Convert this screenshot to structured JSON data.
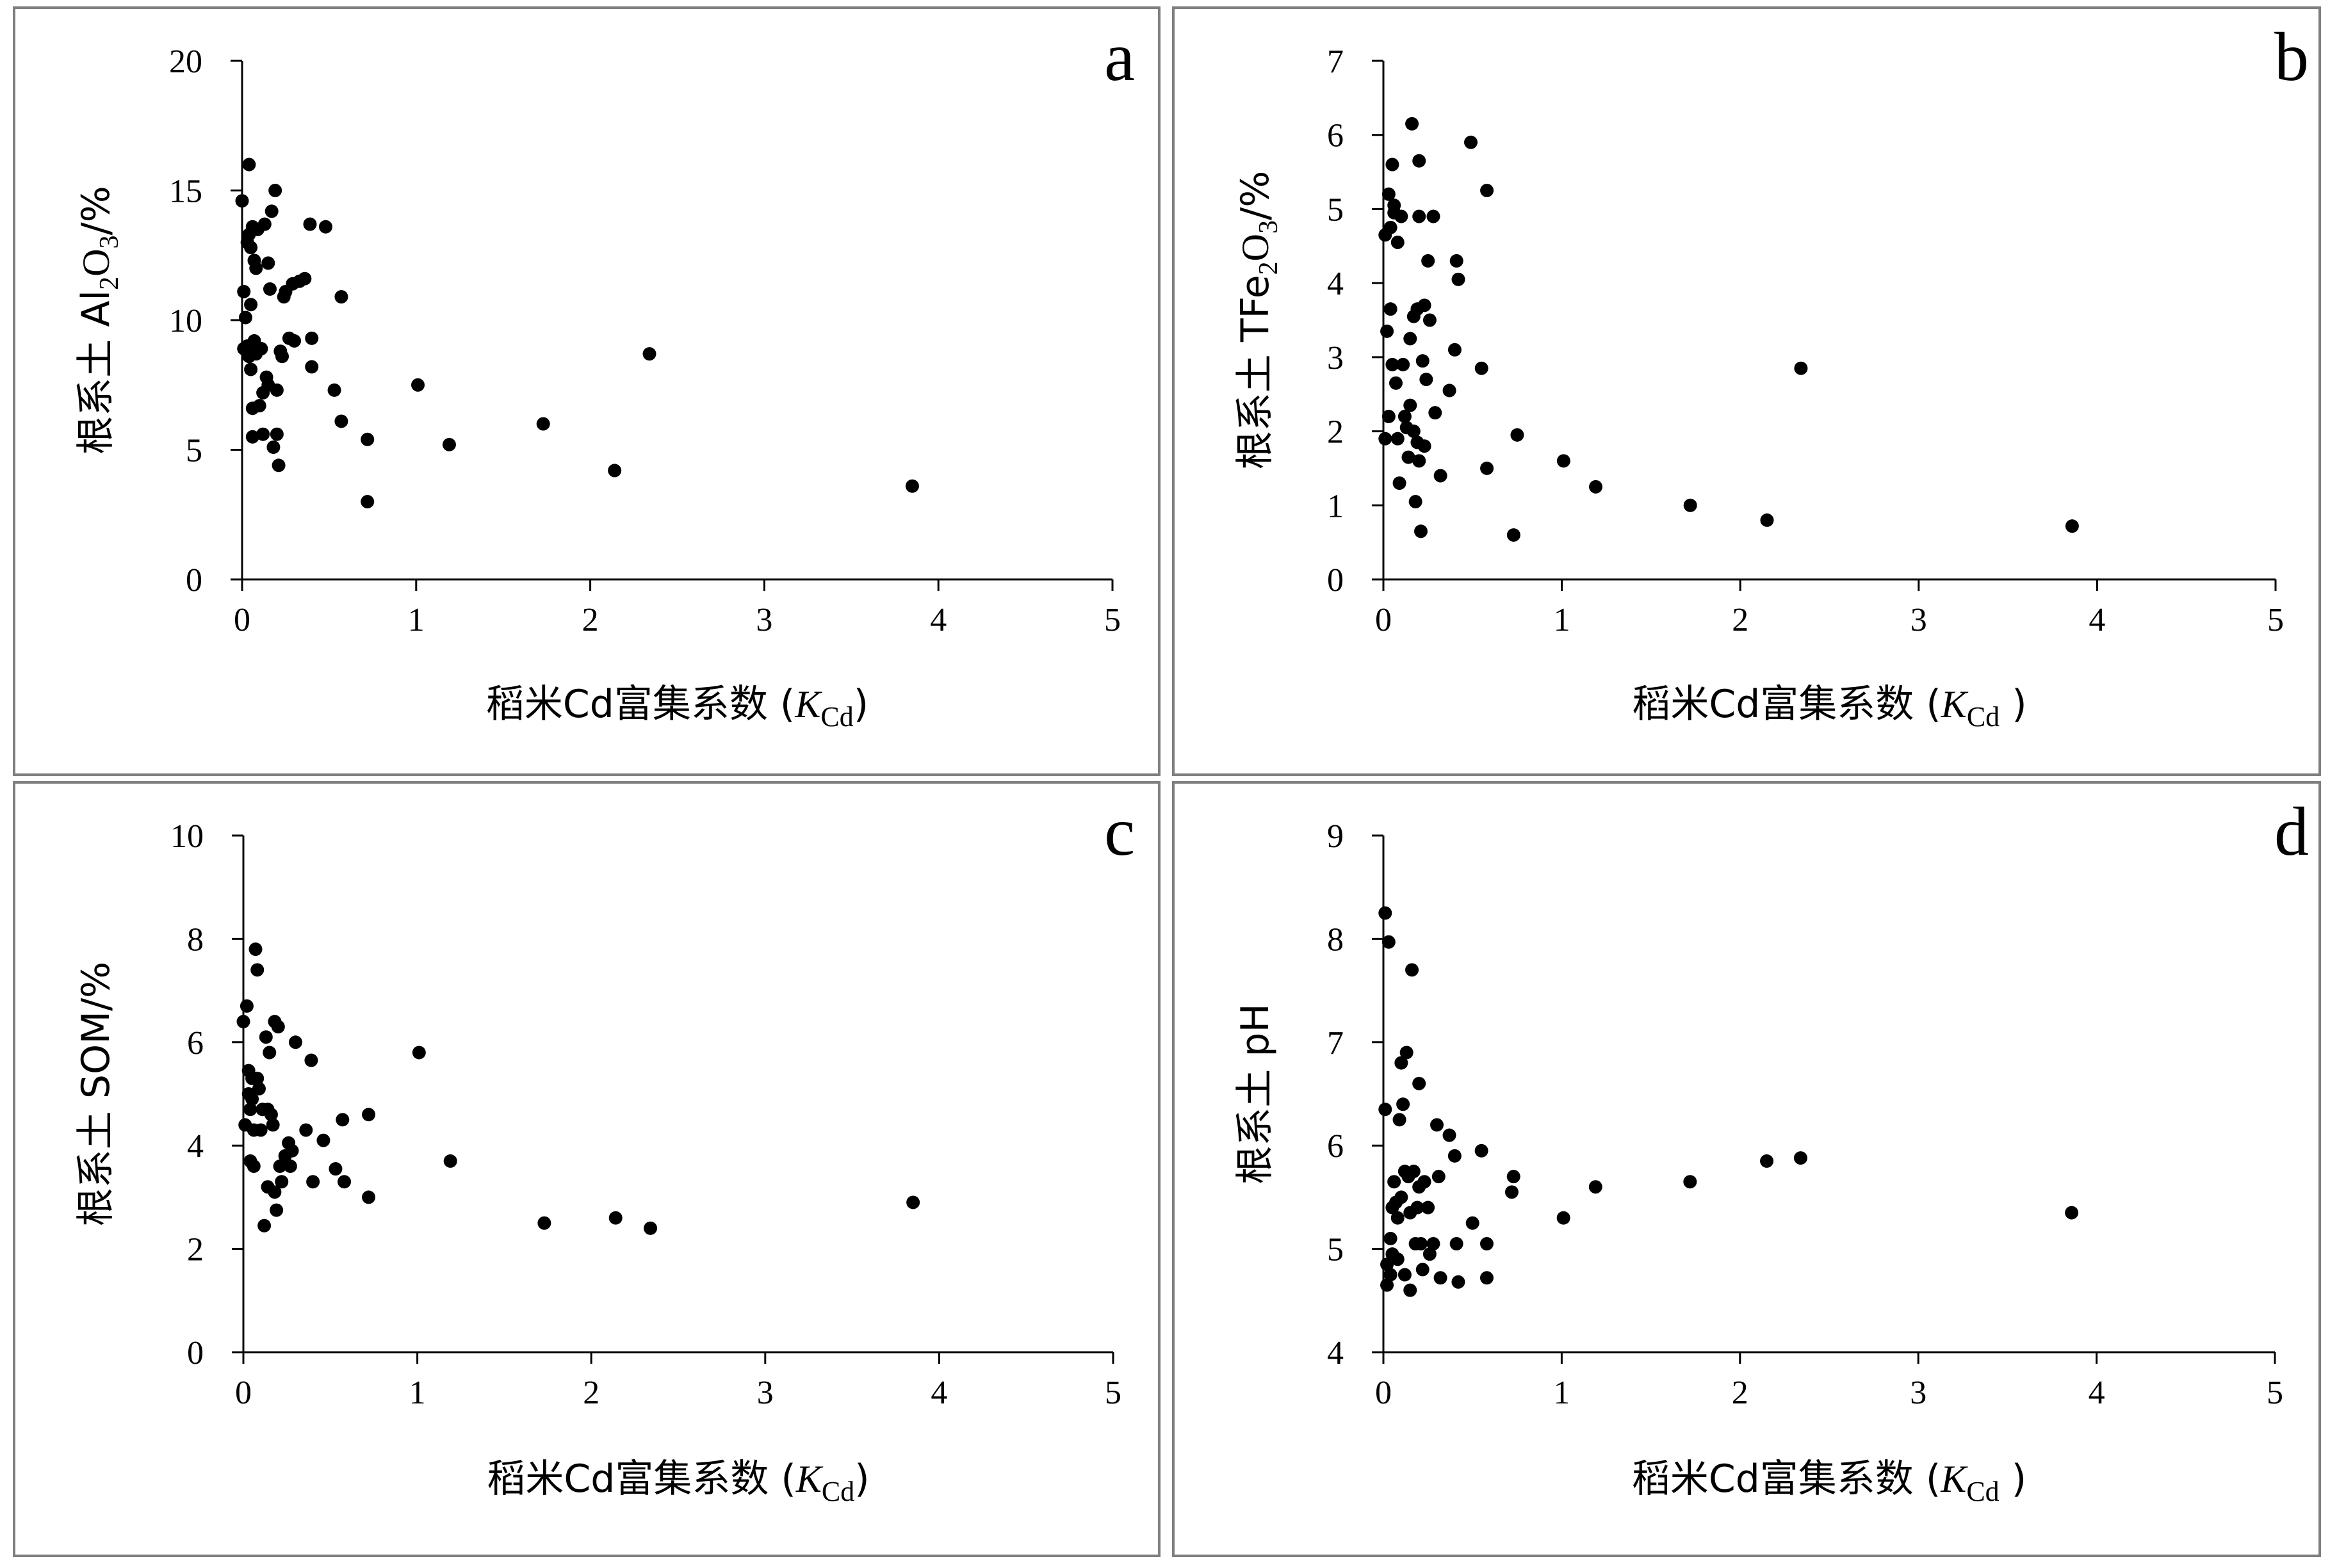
{
  "colors": {
    "point": "#000000",
    "axis": "#000000",
    "frame": "#7f7f7f"
  },
  "chart_data": [
    {
      "type": "scatter",
      "panel_label": "a",
      "xlabel": {
        "prefix": "稻米Cd富集系数 (",
        "italic": "K",
        "sub": "Cd",
        "suffix": ")"
      },
      "ylabel": {
        "prefix": "根系土 Al",
        "sub1": "2",
        "mid": "O",
        "sub2": "3",
        "suffix": "/%"
      },
      "xlim": [
        0,
        5
      ],
      "ylim": [
        0,
        20
      ],
      "xticks": [
        "0",
        "1",
        "2",
        "3",
        "4",
        "5"
      ],
      "yticks": [
        "0",
        "5",
        "10",
        "15",
        "20"
      ],
      "points": [
        [
          0.0,
          14.6
        ],
        [
          0.01,
          11.1
        ],
        [
          0.01,
          8.9
        ],
        [
          0.02,
          10.1
        ],
        [
          0.03,
          9.0
        ],
        [
          0.03,
          13.0
        ],
        [
          0.04,
          16.0
        ],
        [
          0.04,
          13.3
        ],
        [
          0.04,
          8.6
        ],
        [
          0.05,
          12.8
        ],
        [
          0.05,
          10.6
        ],
        [
          0.05,
          8.1
        ],
        [
          0.06,
          13.6
        ],
        [
          0.06,
          6.6
        ],
        [
          0.06,
          5.5
        ],
        [
          0.07,
          12.3
        ],
        [
          0.07,
          9.2
        ],
        [
          0.08,
          12.0
        ],
        [
          0.08,
          8.7
        ],
        [
          0.09,
          13.5
        ],
        [
          0.1,
          6.7
        ],
        [
          0.11,
          8.9
        ],
        [
          0.12,
          7.2
        ],
        [
          0.12,
          5.6
        ],
        [
          0.13,
          13.7
        ],
        [
          0.14,
          7.8
        ],
        [
          0.15,
          12.2
        ],
        [
          0.15,
          7.5
        ],
        [
          0.16,
          11.2
        ],
        [
          0.17,
          14.2
        ],
        [
          0.18,
          5.1
        ],
        [
          0.19,
          15.0
        ],
        [
          0.2,
          7.3
        ],
        [
          0.2,
          5.6
        ],
        [
          0.21,
          4.4
        ],
        [
          0.22,
          8.8
        ],
        [
          0.23,
          8.6
        ],
        [
          0.24,
          10.9
        ],
        [
          0.25,
          11.1
        ],
        [
          0.27,
          9.3
        ],
        [
          0.29,
          11.4
        ],
        [
          0.3,
          9.2
        ],
        [
          0.33,
          11.5
        ],
        [
          0.36,
          11.6
        ],
        [
          0.39,
          13.7
        ],
        [
          0.4,
          9.3
        ],
        [
          0.4,
          8.2
        ],
        [
          0.48,
          13.6
        ],
        [
          0.53,
          7.3
        ],
        [
          0.57,
          10.9
        ],
        [
          0.57,
          6.1
        ],
        [
          0.72,
          5.4
        ],
        [
          0.72,
          3.0
        ],
        [
          1.01,
          7.5
        ],
        [
          1.19,
          5.2
        ],
        [
          1.73,
          6.0
        ],
        [
          2.14,
          4.2
        ],
        [
          2.34,
          8.7
        ],
        [
          3.85,
          3.6
        ]
      ]
    },
    {
      "type": "scatter",
      "panel_label": "b",
      "xlabel": {
        "prefix": "稻米Cd富集系数 (",
        "italic": "K",
        "sub": "Cd",
        "suffix": " )"
      },
      "ylabel": {
        "prefix": "根系土 TFe",
        "sub1": "2",
        "mid": "O",
        "sub2": "3",
        "suffix": "/%"
      },
      "xlim": [
        0,
        5
      ],
      "ylim": [
        0,
        7
      ],
      "xticks": [
        "0",
        "1",
        "2",
        "3",
        "4",
        "5"
      ],
      "yticks": [
        "0",
        "1",
        "2",
        "3",
        "4",
        "5",
        "6",
        "7"
      ],
      "points": [
        [
          0.01,
          4.65
        ],
        [
          0.01,
          1.9
        ],
        [
          0.02,
          3.35
        ],
        [
          0.03,
          5.2
        ],
        [
          0.03,
          2.2
        ],
        [
          0.04,
          4.75
        ],
        [
          0.04,
          3.65
        ],
        [
          0.05,
          5.6
        ],
        [
          0.05,
          2.9
        ],
        [
          0.06,
          5.05
        ],
        [
          0.06,
          4.95
        ],
        [
          0.07,
          2.65
        ],
        [
          0.08,
          4.55
        ],
        [
          0.08,
          1.9
        ],
        [
          0.09,
          1.3
        ],
        [
          0.1,
          4.9
        ],
        [
          0.11,
          2.9
        ],
        [
          0.12,
          2.2
        ],
        [
          0.13,
          2.05
        ],
        [
          0.14,
          1.65
        ],
        [
          0.15,
          3.25
        ],
        [
          0.15,
          2.35
        ],
        [
          0.16,
          6.15
        ],
        [
          0.17,
          3.55
        ],
        [
          0.17,
          2.0
        ],
        [
          0.18,
          1.05
        ],
        [
          0.19,
          3.65
        ],
        [
          0.19,
          1.85
        ],
        [
          0.2,
          4.9
        ],
        [
          0.2,
          5.65
        ],
        [
          0.2,
          1.6
        ],
        [
          0.21,
          0.65
        ],
        [
          0.22,
          2.95
        ],
        [
          0.23,
          3.7
        ],
        [
          0.23,
          1.8
        ],
        [
          0.24,
          2.7
        ],
        [
          0.25,
          4.3
        ],
        [
          0.26,
          3.5
        ],
        [
          0.28,
          4.9
        ],
        [
          0.29,
          2.25
        ],
        [
          0.32,
          1.4
        ],
        [
          0.37,
          2.55
        ],
        [
          0.4,
          3.1
        ],
        [
          0.41,
          4.3
        ],
        [
          0.42,
          4.05
        ],
        [
          0.49,
          5.9
        ],
        [
          0.55,
          2.85
        ],
        [
          0.58,
          5.25
        ],
        [
          0.58,
          1.5
        ],
        [
          0.73,
          0.6
        ],
        [
          0.75,
          1.95
        ],
        [
          1.01,
          1.6
        ],
        [
          1.19,
          1.25
        ],
        [
          1.72,
          1.0
        ],
        [
          2.15,
          0.8
        ],
        [
          2.34,
          2.85
        ],
        [
          3.86,
          0.72
        ]
      ]
    },
    {
      "type": "scatter",
      "panel_label": "c",
      "xlabel": {
        "prefix": "稻米Cd富集系数 (",
        "italic": "K",
        "sub": "Cd",
        "suffix": ")"
      },
      "ylabel": {
        "prefix": "根系土 SOM/%"
      },
      "xlim": [
        0,
        5
      ],
      "ylim": [
        0,
        10
      ],
      "xticks": [
        "0",
        "1",
        "2",
        "3",
        "4",
        "5"
      ],
      "yticks": [
        "0",
        "2",
        "4",
        "6",
        "8",
        "10"
      ],
      "points": [
        [
          0.0,
          6.4
        ],
        [
          0.01,
          4.4
        ],
        [
          0.02,
          6.7
        ],
        [
          0.03,
          5.45
        ],
        [
          0.03,
          5.0
        ],
        [
          0.04,
          4.7
        ],
        [
          0.04,
          3.7
        ],
        [
          0.05,
          5.3
        ],
        [
          0.05,
          4.9
        ],
        [
          0.06,
          4.3
        ],
        [
          0.06,
          3.6
        ],
        [
          0.07,
          7.8
        ],
        [
          0.08,
          7.4
        ],
        [
          0.08,
          5.3
        ],
        [
          0.09,
          5.1
        ],
        [
          0.1,
          4.3
        ],
        [
          0.11,
          4.7
        ],
        [
          0.12,
          2.45
        ],
        [
          0.13,
          6.1
        ],
        [
          0.14,
          4.7
        ],
        [
          0.14,
          3.2
        ],
        [
          0.15,
          5.8
        ],
        [
          0.16,
          4.6
        ],
        [
          0.17,
          4.4
        ],
        [
          0.18,
          6.4
        ],
        [
          0.18,
          3.1
        ],
        [
          0.19,
          2.75
        ],
        [
          0.2,
          6.3
        ],
        [
          0.21,
          3.6
        ],
        [
          0.22,
          3.3
        ],
        [
          0.24,
          3.8
        ],
        [
          0.26,
          4.05
        ],
        [
          0.27,
          3.6
        ],
        [
          0.28,
          3.9
        ],
        [
          0.3,
          6.0
        ],
        [
          0.36,
          4.3
        ],
        [
          0.39,
          5.65
        ],
        [
          0.4,
          3.3
        ],
        [
          0.46,
          4.1
        ],
        [
          0.53,
          3.55
        ],
        [
          0.57,
          4.5
        ],
        [
          0.58,
          3.3
        ],
        [
          0.72,
          4.6
        ],
        [
          0.72,
          3.0
        ],
        [
          1.01,
          5.8
        ],
        [
          1.19,
          3.7
        ],
        [
          1.73,
          2.5
        ],
        [
          2.14,
          2.6
        ],
        [
          2.34,
          2.4
        ],
        [
          3.85,
          2.9
        ]
      ]
    },
    {
      "type": "scatter",
      "panel_label": "d",
      "xlabel": {
        "prefix": "稻米Cd富集系数 (",
        "italic": "K",
        "sub": "Cd",
        "suffix": " )"
      },
      "ylabel": {
        "prefix": "根系土 pH"
      },
      "xlim": [
        0,
        5
      ],
      "ylim": [
        4,
        9
      ],
      "xticks": [
        "0",
        "1",
        "2",
        "3",
        "4",
        "5"
      ],
      "yticks": [
        "4",
        "5",
        "6",
        "7",
        "8",
        "9"
      ],
      "points": [
        [
          0.01,
          8.25
        ],
        [
          0.01,
          6.35
        ],
        [
          0.02,
          4.85
        ],
        [
          0.02,
          4.65
        ],
        [
          0.03,
          7.97
        ],
        [
          0.04,
          5.1
        ],
        [
          0.04,
          4.75
        ],
        [
          0.05,
          5.4
        ],
        [
          0.05,
          4.95
        ],
        [
          0.06,
          5.65
        ],
        [
          0.07,
          5.45
        ],
        [
          0.08,
          5.3
        ],
        [
          0.08,
          4.9
        ],
        [
          0.09,
          6.25
        ],
        [
          0.1,
          6.8
        ],
        [
          0.1,
          5.5
        ],
        [
          0.11,
          6.4
        ],
        [
          0.12,
          5.75
        ],
        [
          0.12,
          4.75
        ],
        [
          0.13,
          6.9
        ],
        [
          0.14,
          5.7
        ],
        [
          0.15,
          5.35
        ],
        [
          0.15,
          4.6
        ],
        [
          0.16,
          7.7
        ],
        [
          0.17,
          5.75
        ],
        [
          0.18,
          5.05
        ],
        [
          0.19,
          5.4
        ],
        [
          0.2,
          6.6
        ],
        [
          0.2,
          5.6
        ],
        [
          0.21,
          5.05
        ],
        [
          0.22,
          4.8
        ],
        [
          0.23,
          5.65
        ],
        [
          0.25,
          5.4
        ],
        [
          0.26,
          4.95
        ],
        [
          0.28,
          5.05
        ],
        [
          0.3,
          6.2
        ],
        [
          0.31,
          5.7
        ],
        [
          0.32,
          4.72
        ],
        [
          0.37,
          6.1
        ],
        [
          0.4,
          5.9
        ],
        [
          0.41,
          5.05
        ],
        [
          0.42,
          4.68
        ],
        [
          0.5,
          5.25
        ],
        [
          0.55,
          5.95
        ],
        [
          0.58,
          5.05
        ],
        [
          0.58,
          4.72
        ],
        [
          0.72,
          5.55
        ],
        [
          0.73,
          5.7
        ],
        [
          1.01,
          5.3
        ],
        [
          1.19,
          5.6
        ],
        [
          1.72,
          5.65
        ],
        [
          2.15,
          5.85
        ],
        [
          2.34,
          5.88
        ],
        [
          3.86,
          5.35
        ]
      ]
    }
  ]
}
